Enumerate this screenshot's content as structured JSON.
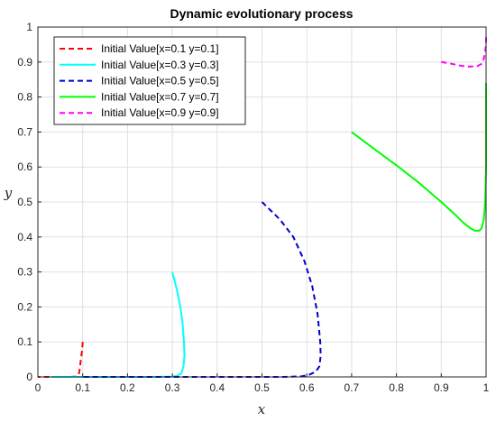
{
  "chart_data": {
    "type": "line",
    "title": "Dynamic evolutionary process",
    "xlabel": "x",
    "ylabel": "y",
    "xlim": [
      0,
      1
    ],
    "ylim": [
      0,
      1
    ],
    "xticks": [
      "0",
      "0.1",
      "0.2",
      "0.3",
      "0.4",
      "0.5",
      "0.6",
      "0.7",
      "0.8",
      "0.9",
      "1"
    ],
    "yticks": [
      "0",
      "0.1",
      "0.2",
      "0.3",
      "0.4",
      "0.5",
      "0.6",
      "0.7",
      "0.8",
      "0.9",
      "1"
    ],
    "grid": true,
    "legend_position": "top-left",
    "series": [
      {
        "name": "Initial Value[x=0.1 y=0.1]",
        "color": "#ff0000",
        "dash": "dashed",
        "x": [
          0.1,
          0.099,
          0.097,
          0.095,
          0.093,
          0.091,
          0.085,
          0.07,
          0.05,
          0.03,
          0.01,
          0.0
        ],
        "y": [
          0.1,
          0.08,
          0.06,
          0.04,
          0.02,
          0.005,
          0.001,
          0.0,
          0.0,
          0.0,
          0.0,
          0.0
        ]
      },
      {
        "name": "Initial Value[x=0.3 y=0.3]",
        "color": "#00ffff",
        "dash": "solid",
        "x": [
          0.3,
          0.31,
          0.318,
          0.323,
          0.326,
          0.327,
          0.325,
          0.32,
          0.31,
          0.3,
          0.25,
          0.2,
          0.15,
          0.1,
          0.05,
          0.03
        ],
        "y": [
          0.3,
          0.25,
          0.2,
          0.15,
          0.1,
          0.06,
          0.03,
          0.01,
          0.003,
          0.001,
          0.0,
          0.0,
          0.0,
          0.0,
          0.0,
          0.0
        ]
      },
      {
        "name": "Initial Value[x=0.5 y=0.5]",
        "color": "#0000cd",
        "dash": "dashed",
        "x": [
          0.5,
          0.54,
          0.57,
          0.595,
          0.612,
          0.624,
          0.63,
          0.631,
          0.628,
          0.62,
          0.605,
          0.59,
          0.55,
          0.5,
          0.45,
          0.4,
          0.35,
          0.3,
          0.25,
          0.2,
          0.15,
          0.1
        ],
        "y": [
          0.5,
          0.45,
          0.4,
          0.33,
          0.26,
          0.18,
          0.1,
          0.06,
          0.03,
          0.015,
          0.006,
          0.002,
          0.0,
          0.0,
          0.0,
          0.0,
          0.0,
          0.0,
          0.0,
          0.0,
          0.0,
          0.0
        ]
      },
      {
        "name": "Initial Value[x=0.7 y=0.7]",
        "color": "#00ff00",
        "dash": "solid",
        "x": [
          0.7,
          0.75,
          0.8,
          0.85,
          0.9,
          0.93,
          0.95,
          0.965,
          0.975,
          0.985,
          0.99,
          0.995,
          0.998,
          1.0,
          1.0
        ],
        "y": [
          0.7,
          0.652,
          0.605,
          0.555,
          0.5,
          0.465,
          0.44,
          0.425,
          0.418,
          0.418,
          0.425,
          0.45,
          0.5,
          0.6,
          0.84
        ]
      },
      {
        "name": "Initial Value[x=0.9 y=0.9]",
        "color": "#ff00ff",
        "dash": "dashed",
        "x": [
          0.9,
          0.92,
          0.94,
          0.96,
          0.98,
          0.99,
          0.995,
          0.998,
          1.0,
          1.0
        ],
        "y": [
          0.9,
          0.896,
          0.89,
          0.887,
          0.888,
          0.895,
          0.91,
          0.93,
          0.95,
          0.98
        ]
      }
    ]
  }
}
